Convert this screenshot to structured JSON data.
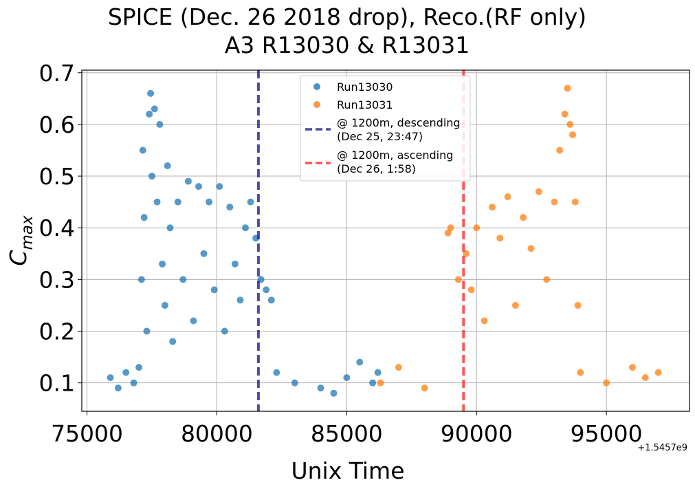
{
  "chart_data": {
    "type": "scatter",
    "title_lines": [
      "SPICE (Dec. 26 2018 drop), Reco.(RF only)",
      "A3 R13030 & R13031"
    ],
    "xlabel": "Unix Time",
    "ylabel_main": "C",
    "ylabel_sub": "max",
    "x_offset_label": "+1.5457e9",
    "xlim": [
      74800,
      98200
    ],
    "ylim": [
      0.045,
      0.705
    ],
    "x_ticks": [
      75000,
      80000,
      85000,
      90000,
      95000
    ],
    "x_tick_labels": [
      "75000",
      "80000",
      "85000",
      "90000",
      "95000"
    ],
    "y_ticks": [
      0.1,
      0.2,
      0.3,
      0.4,
      0.5,
      0.6,
      0.7
    ],
    "y_tick_labels": [
      "0.1",
      "0.2",
      "0.3",
      "0.4",
      "0.5",
      "0.6",
      "0.7"
    ],
    "grid": true,
    "legend_position": "top-center",
    "series": [
      {
        "name": "Run13030",
        "color": "#1f77b4",
        "marker": "circle",
        "points": [
          [
            75900,
            0.11
          ],
          [
            76200,
            0.09
          ],
          [
            76500,
            0.12
          ],
          [
            76800,
            0.1
          ],
          [
            77000,
            0.13
          ],
          [
            77100,
            0.3
          ],
          [
            77150,
            0.55
          ],
          [
            77200,
            0.42
          ],
          [
            77300,
            0.2
          ],
          [
            77400,
            0.62
          ],
          [
            77450,
            0.66
          ],
          [
            77500,
            0.5
          ],
          [
            77600,
            0.63
          ],
          [
            77700,
            0.45
          ],
          [
            77800,
            0.6
          ],
          [
            77900,
            0.33
          ],
          [
            78000,
            0.25
          ],
          [
            78100,
            0.52
          ],
          [
            78200,
            0.4
          ],
          [
            78300,
            0.18
          ],
          [
            78500,
            0.45
          ],
          [
            78700,
            0.3
          ],
          [
            78900,
            0.49
          ],
          [
            79100,
            0.22
          ],
          [
            79300,
            0.48
          ],
          [
            79500,
            0.35
          ],
          [
            79700,
            0.45
          ],
          [
            79900,
            0.28
          ],
          [
            80100,
            0.48
          ],
          [
            80300,
            0.2
          ],
          [
            80500,
            0.44
          ],
          [
            80700,
            0.33
          ],
          [
            80900,
            0.26
          ],
          [
            81100,
            0.4
          ],
          [
            81300,
            0.45
          ],
          [
            81500,
            0.38
          ],
          [
            81700,
            0.3
          ],
          [
            81900,
            0.28
          ],
          [
            82100,
            0.26
          ],
          [
            82300,
            0.12
          ],
          [
            83000,
            0.1
          ],
          [
            84000,
            0.09
          ],
          [
            84500,
            0.08
          ],
          [
            85000,
            0.11
          ],
          [
            85500,
            0.14
          ],
          [
            86000,
            0.1
          ],
          [
            86200,
            0.12
          ]
        ]
      },
      {
        "name": "Run13031",
        "color": "#ff7f0e",
        "marker": "circle",
        "points": [
          [
            86300,
            0.1
          ],
          [
            87000,
            0.13
          ],
          [
            88000,
            0.09
          ],
          [
            88900,
            0.39
          ],
          [
            89000,
            0.4
          ],
          [
            89300,
            0.3
          ],
          [
            89600,
            0.35
          ],
          [
            89800,
            0.28
          ],
          [
            90000,
            0.4
          ],
          [
            90300,
            0.22
          ],
          [
            90600,
            0.44
          ],
          [
            90900,
            0.38
          ],
          [
            91200,
            0.46
          ],
          [
            91500,
            0.25
          ],
          [
            91800,
            0.42
          ],
          [
            92100,
            0.36
          ],
          [
            92400,
            0.47
          ],
          [
            92700,
            0.3
          ],
          [
            93000,
            0.45
          ],
          [
            93200,
            0.55
          ],
          [
            93400,
            0.62
          ],
          [
            93500,
            0.67
          ],
          [
            93600,
            0.6
          ],
          [
            93700,
            0.58
          ],
          [
            93800,
            0.45
          ],
          [
            93900,
            0.25
          ],
          [
            94000,
            0.12
          ],
          [
            95000,
            0.1
          ],
          [
            96000,
            0.13
          ],
          [
            96500,
            0.11
          ],
          [
            97000,
            0.12
          ]
        ]
      }
    ],
    "vertical_lines": [
      {
        "x": 81600,
        "color": "#1f1f8f",
        "style": "dashed",
        "label": "@ 1200m, descending\n(Dec 25, 23:47)"
      },
      {
        "x": 89500,
        "color": "#ff2a2a",
        "style": "dashed",
        "label": "@ 1200m, ascending\n(Dec 26, 1:58)"
      }
    ]
  }
}
